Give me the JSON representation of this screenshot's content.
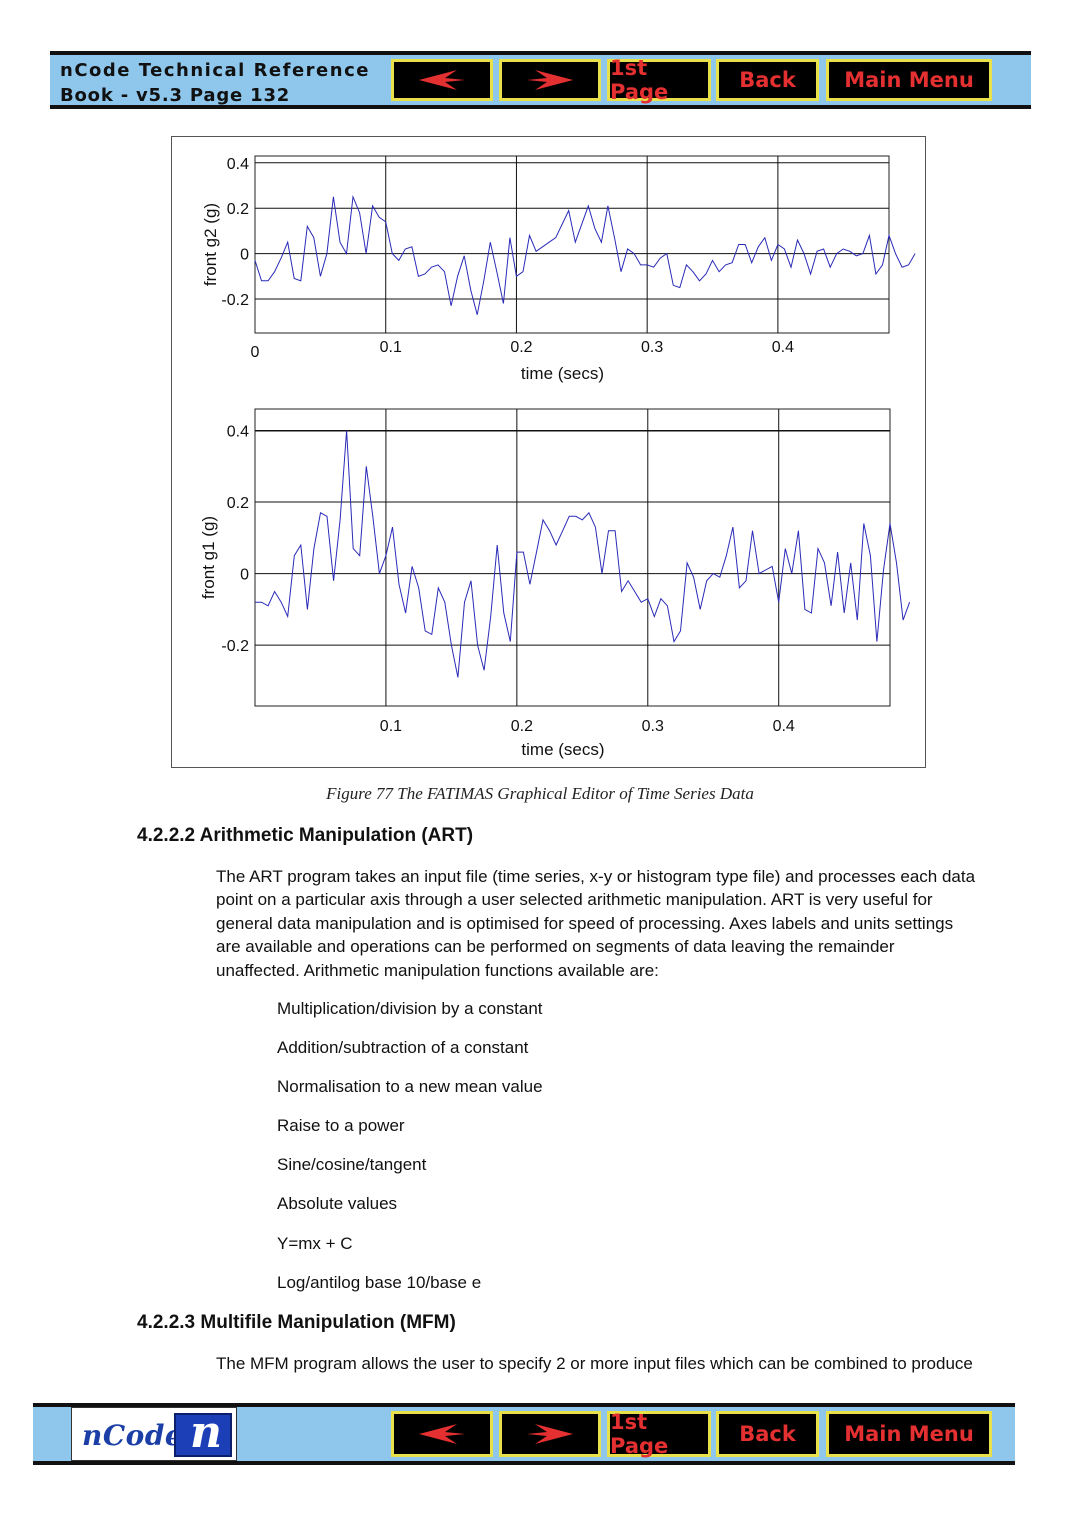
{
  "header": {
    "title_line1": "nCode Technical Reference",
    "title_line2": "Book - v5.3  Page 132"
  },
  "nav": {
    "prev_icon": "left-arrow-icon",
    "next_icon": "right-arrow-icon",
    "first_page_label": "1st Page",
    "back_label": "Back",
    "main_menu_label": "Main Menu",
    "button_text_color": "#e43030",
    "button_border_color": "#e9e14a"
  },
  "footer": {
    "logo_text": "nCode",
    "logo_mark": "n"
  },
  "chart_data": [
    {
      "type": "line",
      "xlabel": "time (secs)",
      "ylabel": "front g2 (g)",
      "xlim": [
        0,
        0.485
      ],
      "ylim": [
        -0.35,
        0.43
      ],
      "xticks": [
        "0",
        "0.1",
        "0.2",
        "0.3",
        "0.4"
      ],
      "yticks": [
        "0.4",
        "0.2",
        "0",
        "-0.2"
      ],
      "grid": true,
      "line_color": "#2a2ab8",
      "x_start": 0,
      "x_step": 0.005,
      "values": [
        -0.03,
        -0.12,
        -0.12,
        -0.08,
        -0.02,
        0.05,
        -0.11,
        -0.12,
        0.12,
        0.07,
        -0.1,
        0.0,
        0.25,
        0.05,
        0.0,
        0.25,
        0.18,
        0.0,
        0.21,
        0.16,
        0.14,
        0.0,
        -0.03,
        0.02,
        0.03,
        -0.1,
        -0.09,
        -0.06,
        -0.05,
        -0.08,
        -0.23,
        -0.1,
        -0.01,
        -0.16,
        -0.27,
        -0.12,
        0.05,
        -0.08,
        -0.22,
        0.07,
        -0.1,
        -0.08,
        0.08,
        0.01,
        0.03,
        0.05,
        0.07,
        0.13,
        0.19,
        0.05,
        0.13,
        0.21,
        0.11,
        0.05,
        0.21,
        0.07,
        -0.08,
        0.02,
        0.0,
        -0.05,
        -0.05,
        -0.06,
        -0.02,
        0.0,
        -0.14,
        -0.15,
        -0.05,
        -0.08,
        -0.12,
        -0.09,
        -0.03,
        -0.08,
        -0.05,
        -0.04,
        0.04,
        0.04,
        -0.04,
        0.03,
        0.07,
        -0.03,
        0.04,
        0.02,
        -0.06,
        0.06,
        0.0,
        -0.09,
        0.01,
        0.02,
        -0.06,
        0.0,
        0.02,
        0.01,
        -0.01,
        0.0,
        0.08,
        -0.09,
        -0.05,
        0.08,
        0.0,
        -0.06,
        -0.05,
        0.0
      ]
    },
    {
      "type": "line",
      "xlabel": "time (secs)",
      "ylabel": "front g1 (g)",
      "xlim": [
        0,
        0.485
      ],
      "ylim": [
        -0.37,
        0.46
      ],
      "xticks": [
        "0.1",
        "0.2",
        "0.3",
        "0.4"
      ],
      "yticks": [
        "0.4",
        "0.2",
        "0",
        "-0.2"
      ],
      "grid": true,
      "line_color": "#2a2ab8",
      "x_start": 0,
      "x_step": 0.005,
      "values": [
        -0.08,
        -0.08,
        -0.09,
        -0.05,
        -0.08,
        -0.12,
        0.05,
        0.08,
        -0.1,
        0.07,
        0.17,
        0.16,
        -0.02,
        0.15,
        0.4,
        0.07,
        0.05,
        0.3,
        0.16,
        0.0,
        0.05,
        0.13,
        -0.03,
        -0.11,
        0.02,
        -0.04,
        -0.16,
        -0.17,
        -0.04,
        -0.08,
        -0.2,
        -0.29,
        -0.08,
        -0.02,
        -0.2,
        -0.27,
        -0.12,
        0.08,
        -0.11,
        -0.19,
        0.06,
        0.06,
        -0.03,
        0.06,
        0.15,
        0.12,
        0.08,
        0.12,
        0.16,
        0.16,
        0.15,
        0.17,
        0.13,
        0.0,
        0.12,
        0.12,
        -0.05,
        -0.02,
        -0.05,
        -0.08,
        -0.07,
        -0.12,
        -0.07,
        -0.09,
        -0.19,
        -0.16,
        0.03,
        -0.01,
        -0.1,
        -0.02,
        0.0,
        -0.01,
        0.05,
        0.13,
        -0.04,
        -0.02,
        0.12,
        0.0,
        0.01,
        0.02,
        -0.08,
        0.07,
        0.0,
        0.12,
        -0.1,
        -0.11,
        0.07,
        0.03,
        -0.09,
        0.06,
        -0.11,
        0.03,
        -0.13,
        0.14,
        0.05,
        -0.19,
        0.01,
        0.14,
        0.03,
        -0.13,
        -0.08
      ]
    }
  ],
  "figure": {
    "caption": "Figure 77  The FATIMAS Graphical Editor of Time Series Data"
  },
  "sections": {
    "art_heading": "4.2.2.2 Arithmetic Manipulation (ART)",
    "art_para": [
      "The ART program takes an input file (time series, x-y or histogram type file) and processes each data",
      "point on a particular axis through a user selected arithmetic manipulation. ART is very useful for",
      "general data manipulation and is optimised for speed of processing. Axes labels and units settings",
      "are available and operations can be performed on segments of data leaving the remainder",
      "unaffected. Arithmetic manipulation functions available are:"
    ],
    "art_functions": [
      "Multiplication/division by a constant",
      "Addition/subtraction of a constant",
      "Normalisation to a new mean value",
      "Raise to a power",
      "Sine/cosine/tangent",
      "Absolute values",
      "Y=mx + C",
      "Log/antilog base 10/base e"
    ],
    "mfm_heading": "4.2.2.3 Multifile Manipulation (MFM)",
    "mfm_para": "The MFM program allows the user to specify 2 or more input files  which can be combined to produce"
  }
}
